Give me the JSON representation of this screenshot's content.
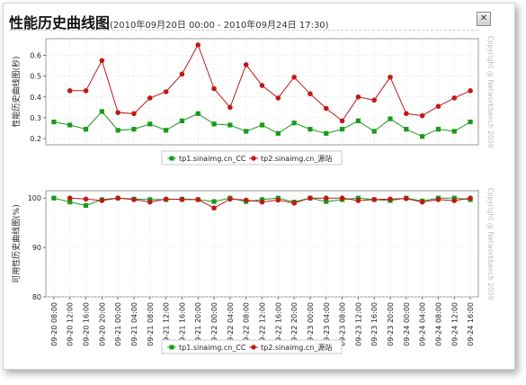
{
  "header": {
    "title": "性能历史曲线图",
    "range": "(2010年09月20日  00:00 - 2010年09月24日  17:30)",
    "close_symbol": "✕"
  },
  "watermark": "Copyright @ Networkbench 2009",
  "colors": {
    "series1": "#1a9a1a",
    "series2": "#c01818",
    "grid": "#e2e2e2",
    "axis": "#555555"
  },
  "x_labels": [
    "09-20 08:00",
    "09-20 12:00",
    "09-20 16:00",
    "09-20 20:00",
    "09-21 00:00",
    "09-21 04:00",
    "09-21 08:00",
    "09-21 12:00",
    "09-21 16:00",
    "09-21 20:00",
    "09-22 00:00",
    "09-22 04:00",
    "09-22 08:00",
    "09-22 12:00",
    "09-22 16:00",
    "09-22 20:00",
    "09-23 00:00",
    "09-23 04:00",
    "09-23 08:00",
    "09-23 12:00",
    "09-23 16:00",
    "09-23 20:00",
    "09-24 00:00",
    "09-24 04:00",
    "09-24 08:00",
    "09-24 12:00",
    "09-24 16:00"
  ],
  "chart_data": [
    {
      "type": "line",
      "ylabel": "性能历史曲线图(秒)",
      "ylim": [
        0.17,
        0.68
      ],
      "yticks": [
        0.2,
        0.3,
        0.4,
        0.5,
        0.6
      ],
      "ytick_labels": [
        "0.2",
        "0.3",
        "0.4",
        "0.5",
        "0.6"
      ],
      "grid": true,
      "legend_position": "bottom",
      "series": [
        {
          "name": "tp1.sinaimg.cn_CC",
          "marker": "square",
          "values": [
            0.28,
            0.265,
            0.245,
            0.33,
            0.24,
            0.245,
            0.27,
            0.24,
            0.285,
            0.32,
            0.27,
            0.265,
            0.235,
            0.265,
            0.225,
            0.275,
            0.245,
            0.225,
            0.245,
            0.285,
            0.235,
            0.295,
            0.245,
            0.21,
            0.245,
            0.235,
            0.28
          ]
        },
        {
          "name": "tp2.sinaimg.cn_源站",
          "marker": "circle",
          "values": [
            null,
            0.43,
            0.43,
            0.575,
            0.325,
            0.32,
            0.395,
            0.425,
            0.51,
            0.65,
            0.44,
            0.35,
            0.555,
            0.455,
            0.395,
            0.495,
            0.415,
            0.345,
            0.285,
            0.4,
            0.385,
            0.495,
            0.32,
            0.31,
            0.355,
            0.395,
            0.43
          ]
        }
      ]
    },
    {
      "type": "line",
      "ylabel": "可用性历史曲线图(%)",
      "ylim": [
        80,
        101.5
      ],
      "yticks": [
        80,
        90,
        100
      ],
      "ytick_labels": [
        "80",
        "90",
        "100"
      ],
      "grid": true,
      "legend_position": "bottom",
      "series": [
        {
          "name": "tp1.sinaimg.cn_CC",
          "marker": "square",
          "values": [
            100,
            99.2,
            98.5,
            99.7,
            100,
            99.8,
            99.7,
            99.7,
            99.8,
            99.7,
            99.3,
            100,
            99.3,
            99.7,
            100,
            99.2,
            100,
            99.3,
            99.7,
            100,
            99.7,
            99.5,
            100,
            99.4,
            100,
            100,
            99.7
          ]
        },
        {
          "name": "tp2.sinaimg.cn_源站",
          "marker": "circle",
          "values": [
            null,
            100,
            99.8,
            99.5,
            100,
            99.7,
            99.2,
            99.8,
            99.7,
            99.7,
            98,
            99.8,
            99.6,
            99.2,
            99.6,
            99,
            100,
            100,
            100,
            99.5,
            99.7,
            99.8,
            99.9,
            99.2,
            99.7,
            99.5,
            100
          ]
        }
      ]
    }
  ]
}
